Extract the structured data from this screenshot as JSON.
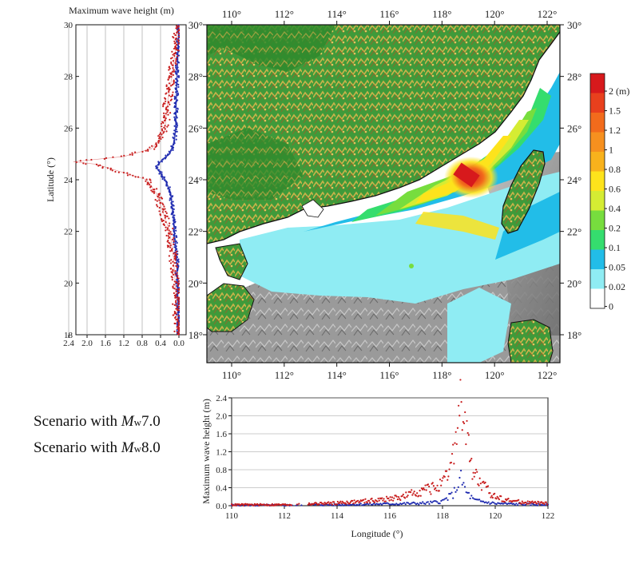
{
  "left_panel": {
    "title": "Maximum wave height (m)",
    "ylabel": "Latitude (°)",
    "x_ticks": [
      "2.4",
      "2.0",
      "1.6",
      "1.2",
      "0.8",
      "0.4",
      "0.0"
    ],
    "x_values": [
      2.4,
      2.0,
      1.6,
      1.2,
      0.8,
      0.4,
      0.0
    ],
    "y_ticks": [
      "18",
      "20",
      "22",
      "24",
      "26",
      "28",
      "30"
    ],
    "y_values": [
      18,
      20,
      22,
      24,
      26,
      28,
      30
    ]
  },
  "map": {
    "lon_ticks": [
      "110°",
      "112°",
      "114°",
      "116°",
      "118°",
      "120°",
      "122°"
    ],
    "lon_values": [
      110,
      112,
      114,
      116,
      118,
      120,
      122
    ],
    "lat_ticks": [
      "18°",
      "20°",
      "22°",
      "24°",
      "26°",
      "28°",
      "30°"
    ],
    "lat_values": [
      18,
      20,
      22,
      24,
      26,
      28,
      30
    ]
  },
  "colorbar": {
    "labels": [
      "2 (m)",
      "1.5",
      "1.2",
      "1",
      "0.8",
      "0.6",
      "0.4",
      "0.2",
      "0.1",
      "0.05",
      "0.02",
      "0"
    ],
    "colors": [
      "#d7191c",
      "#e8401d",
      "#f26b1c",
      "#f6901f",
      "#f8b21c",
      "#fde31c",
      "#d5ec33",
      "#77dd3e",
      "#35dd6e",
      "#22bde8",
      "#8fecf3",
      "#ffffff"
    ]
  },
  "bottom_panel": {
    "xlabel": "Longitude (°)",
    "ylabel": "Maximum wave height (m)",
    "x_ticks": [
      "110",
      "112",
      "114",
      "116",
      "118",
      "120",
      "122"
    ],
    "x_values": [
      110,
      112,
      114,
      116,
      118,
      120,
      122
    ],
    "y_ticks": [
      "0.0",
      "0.4",
      "0.8",
      "1.2",
      "1.6",
      "2.0",
      "2.4"
    ],
    "y_values": [
      0,
      0.4,
      0.8,
      1.2,
      1.6,
      2.0,
      2.4
    ]
  },
  "legend": {
    "mw7": {
      "prefix": "Scenario with ",
      "m": "M",
      "w": "w",
      "mag": "7.0",
      "color": "#1f2bb0"
    },
    "mw8": {
      "prefix": "Scenario with ",
      "m": "M",
      "w": "w",
      "mag": "8.0",
      "color": "#c81e1e"
    }
  },
  "chart_data": [
    {
      "type": "scatter",
      "orientation": "horizontal-profile",
      "x_axis": "Maximum wave height (m)",
      "y_axis": "Latitude (°)",
      "xlim": [
        2.4,
        0.0
      ],
      "ylim": [
        18,
        30
      ],
      "series": [
        {
          "name": "Scenario with Mw7.0",
          "color": "#1f2bb0",
          "points": [
            [
              0.0,
              18
            ],
            [
              0.02,
              19
            ],
            [
              0.03,
              20
            ],
            [
              0.05,
              21
            ],
            [
              0.1,
              22
            ],
            [
              0.12,
              22.5
            ],
            [
              0.15,
              23
            ],
            [
              0.18,
              23.5
            ],
            [
              0.3,
              24
            ],
            [
              0.5,
              24.5
            ],
            [
              0.35,
              24.8
            ],
            [
              0.2,
              25
            ],
            [
              0.1,
              25.5
            ],
            [
              0.07,
              26
            ],
            [
              0.06,
              27
            ],
            [
              0.04,
              28
            ],
            [
              0.02,
              29
            ],
            [
              0.0,
              30
            ]
          ]
        },
        {
          "name": "Scenario with Mw8.0",
          "color": "#c81e1e",
          "points": [
            [
              0.0,
              18
            ],
            [
              0.05,
              19
            ],
            [
              0.08,
              20
            ],
            [
              0.12,
              21
            ],
            [
              0.2,
              22
            ],
            [
              0.3,
              22.5
            ],
            [
              0.4,
              23
            ],
            [
              0.5,
              23.5
            ],
            [
              0.7,
              24
            ],
            [
              1.8,
              24.6
            ],
            [
              2.3,
              24.7
            ],
            [
              1.2,
              24.9
            ],
            [
              0.6,
              25.2
            ],
            [
              0.4,
              25.6
            ],
            [
              0.3,
              26
            ],
            [
              0.25,
              27
            ],
            [
              0.15,
              28
            ],
            [
              0.08,
              29
            ],
            [
              0.02,
              30
            ]
          ]
        }
      ]
    },
    {
      "type": "scatter",
      "x_axis": "Longitude (°)",
      "y_axis": "Maximum wave height (m)",
      "xlim": [
        110,
        122
      ],
      "ylim": [
        0,
        2.4
      ],
      "series": [
        {
          "name": "Scenario with Mw7.0",
          "color": "#1f2bb0",
          "points": [
            [
              110,
              0.01
            ],
            [
              111,
              0.01
            ],
            [
              112,
              0.01
            ],
            [
              113,
              0.02
            ],
            [
              114,
              0.02
            ],
            [
              115,
              0.03
            ],
            [
              116,
              0.04
            ],
            [
              117,
              0.05
            ],
            [
              117.5,
              0.06
            ],
            [
              118,
              0.1
            ],
            [
              118.4,
              0.25
            ],
            [
              118.7,
              0.6
            ],
            [
              118.9,
              0.3
            ],
            [
              119.2,
              0.12
            ],
            [
              119.6,
              0.08
            ],
            [
              120,
              0.05
            ],
            [
              121,
              0.03
            ],
            [
              122,
              0.02
            ]
          ]
        },
        {
          "name": "Scenario with Mw8.0",
          "color": "#c81e1e",
          "points": [
            [
              110,
              0.02
            ],
            [
              111,
              0.02
            ],
            [
              112,
              0.02
            ],
            [
              113,
              0.04
            ],
            [
              114,
              0.06
            ],
            [
              115,
              0.1
            ],
            [
              116,
              0.15
            ],
            [
              116.5,
              0.2
            ],
            [
              117,
              0.3
            ],
            [
              117.5,
              0.38
            ],
            [
              118,
              0.45
            ],
            [
              118.3,
              0.8
            ],
            [
              118.5,
              1.5
            ],
            [
              118.7,
              2.3
            ],
            [
              118.9,
              1.6
            ],
            [
              119.1,
              0.9
            ],
            [
              119.4,
              0.5
            ],
            [
              119.7,
              0.35
            ],
            [
              120,
              0.2
            ],
            [
              120.5,
              0.12
            ],
            [
              121,
              0.08
            ],
            [
              122,
              0.05
            ]
          ]
        }
      ]
    }
  ]
}
